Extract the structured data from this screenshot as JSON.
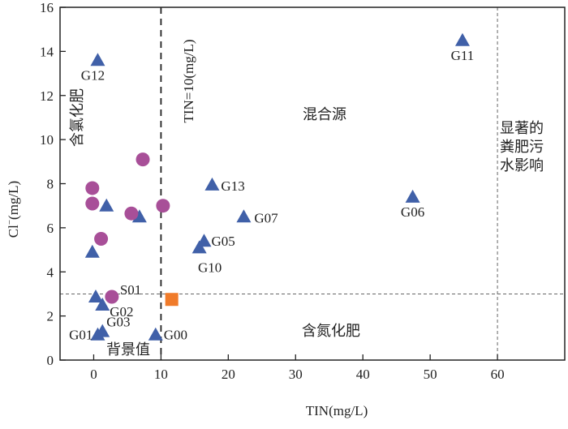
{
  "chart_data": {
    "type": "scatter",
    "title": "",
    "xlabel": "TIN(mg/L)",
    "ylabel": "Cl",
    "ylabel_sup": "−",
    "ylabel_unit": "(mg/L)",
    "xlim": [
      -5,
      70
    ],
    "ylim": [
      0,
      16
    ],
    "xticks": [
      0,
      10,
      20,
      30,
      40,
      50,
      60
    ],
    "yticks": [
      0,
      2,
      4,
      6,
      8,
      10,
      12,
      14,
      16
    ],
    "grid": false,
    "colors": {
      "triangle": "#4060a8",
      "circle": "#a84f98",
      "square": "#f07b2a",
      "axis": "#222222"
    },
    "reference_lines": [
      {
        "orientation": "vertical",
        "value": 10,
        "style": "dashed-dark",
        "label": "TIN=10(mg/L)"
      },
      {
        "orientation": "horizontal",
        "value": 3,
        "style": "dashed-gray"
      },
      {
        "orientation": "vertical",
        "value": 60,
        "style": "dashed-gray"
      }
    ],
    "annotations": {
      "mixed": "混合源",
      "manure": [
        "显著的",
        "粪肥污",
        "水影响"
      ],
      "n_fert": "含氮化肥",
      "background": "背景值",
      "cl_fert": "含氯化肥"
    },
    "series": [
      {
        "name": "triangles",
        "marker": "triangle",
        "points": [
          {
            "x": 0.6,
            "y": 13.6,
            "label": "G12"
          },
          {
            "x": 54.8,
            "y": 14.5,
            "label": "G11"
          },
          {
            "x": 17.6,
            "y": 7.95,
            "label": "G13"
          },
          {
            "x": 22.3,
            "y": 6.5,
            "label": "G07"
          },
          {
            "x": 47.4,
            "y": 7.4,
            "label": "G06"
          },
          {
            "x": 16.4,
            "y": 5.4,
            "label": "G05"
          },
          {
            "x": 15.7,
            "y": 5.1,
            "label": "G10"
          },
          {
            "x": 1.3,
            "y": 2.5,
            "label": "G02"
          },
          {
            "x": 1.3,
            "y": 1.3,
            "label": "G03"
          },
          {
            "x": 0.6,
            "y": 1.15,
            "label": "G01"
          },
          {
            "x": 9.2,
            "y": 1.15,
            "label": "G00"
          },
          {
            "x": 1.9,
            "y": 7.0,
            "label": ""
          },
          {
            "x": 6.8,
            "y": 6.5,
            "label": ""
          },
          {
            "x": -0.2,
            "y": 4.9,
            "label": ""
          },
          {
            "x": 0.3,
            "y": 2.87,
            "label": ""
          }
        ]
      },
      {
        "name": "circles",
        "marker": "circle",
        "points": [
          {
            "x": 7.3,
            "y": 9.1,
            "label": ""
          },
          {
            "x": -0.2,
            "y": 7.8,
            "label": ""
          },
          {
            "x": -0.2,
            "y": 7.1,
            "label": ""
          },
          {
            "x": 5.6,
            "y": 6.65,
            "label": ""
          },
          {
            "x": 10.3,
            "y": 7.0,
            "label": ""
          },
          {
            "x": 1.1,
            "y": 5.5,
            "label": ""
          },
          {
            "x": 2.7,
            "y": 2.87,
            "label": "S01"
          }
        ]
      },
      {
        "name": "squares",
        "marker": "square",
        "points": [
          {
            "x": 11.6,
            "y": 2.75,
            "label": ""
          }
        ]
      }
    ]
  }
}
